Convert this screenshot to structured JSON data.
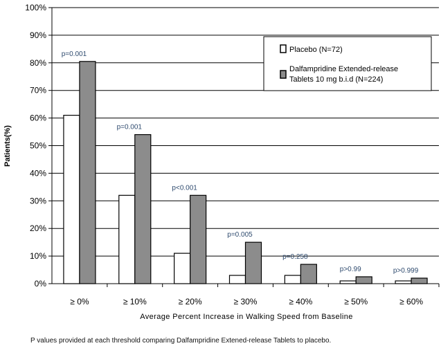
{
  "chart_data": {
    "type": "bar",
    "title": "",
    "xlabel": "Average Percent Increase in Walking Speed from Baseline",
    "ylabel": "Patients(%)",
    "ylim": [
      0,
      100
    ],
    "yticks": [
      "0%",
      "10%",
      "20%",
      "30%",
      "40%",
      "50%",
      "60%",
      "70%",
      "80%",
      "90%",
      "100%"
    ],
    "categories": [
      "≥ 0%",
      "≥ 10%",
      "≥ 20%",
      "≥ 30%",
      "≥ 40%",
      "≥ 50%",
      "≥ 60%"
    ],
    "series": [
      {
        "name": "Placebo (N=72)",
        "color": "#ffffff",
        "values": [
          61,
          32,
          11,
          3,
          3,
          1,
          1
        ]
      },
      {
        "name": "Dalfampridine Extended-release Tablets 10 mg b.i.d (N=224)",
        "color": "#8c8c8c",
        "values": [
          80.5,
          54,
          32,
          15,
          7,
          2.5,
          2
        ]
      }
    ],
    "annotations": [
      "p=0.001",
      "p=0.001",
      "p<0.001",
      "p=0.005",
      "p=0.258",
      "p>0.99",
      "p>0.999"
    ],
    "annotation_color": "#2e4a6e",
    "grid": true,
    "legend_position": "top-right"
  },
  "footnote": "P values provided at each threshold comparing Dalfampridine Extened-release Tablets to placebo."
}
